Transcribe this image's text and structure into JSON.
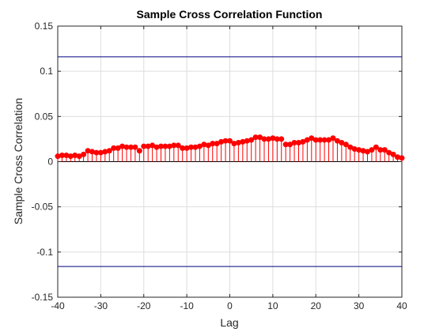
{
  "chart_data": {
    "type": "stem",
    "title": "Sample Cross Correlation Function",
    "xlabel": "Lag",
    "ylabel": "Sample Cross Correlation",
    "xlim": [
      -40,
      40
    ],
    "ylim": [
      -0.15,
      0.15
    ],
    "xticks": [
      "-40",
      "-30",
      "-20",
      "-10",
      "0",
      "10",
      "20",
      "30",
      "40"
    ],
    "yticks": [
      "0.15",
      "0.1",
      "0.05",
      "0",
      "-0.05",
      "-0.1",
      "-0.15"
    ],
    "grid": true,
    "confidence_bounds": [
      0.116,
      -0.116
    ],
    "lags": [
      -40,
      -39,
      -38,
      -37,
      -36,
      -35,
      -34,
      -33,
      -32,
      -31,
      -30,
      -29,
      -28,
      -27,
      -26,
      -25,
      -24,
      -23,
      -22,
      -21,
      -20,
      -19,
      -18,
      -17,
      -16,
      -15,
      -14,
      -13,
      -12,
      -11,
      -10,
      -9,
      -8,
      -7,
      -6,
      -5,
      -4,
      -3,
      -2,
      -1,
      0,
      1,
      2,
      3,
      4,
      5,
      6,
      7,
      8,
      9,
      10,
      11,
      12,
      13,
      14,
      15,
      16,
      17,
      18,
      19,
      20,
      21,
      22,
      23,
      24,
      25,
      26,
      27,
      28,
      29,
      30,
      31,
      32,
      33,
      34,
      35,
      36,
      37,
      38,
      39,
      40
    ],
    "values": [
      0.006,
      0.007,
      0.007,
      0.006,
      0.007,
      0.006,
      0.008,
      0.012,
      0.011,
      0.01,
      0.01,
      0.011,
      0.012,
      0.015,
      0.015,
      0.017,
      0.016,
      0.016,
      0.016,
      0.012,
      0.017,
      0.017,
      0.018,
      0.016,
      0.017,
      0.017,
      0.017,
      0.018,
      0.018,
      0.015,
      0.015,
      0.016,
      0.016,
      0.017,
      0.019,
      0.018,
      0.02,
      0.02,
      0.022,
      0.023,
      0.023,
      0.02,
      0.021,
      0.022,
      0.023,
      0.024,
      0.027,
      0.027,
      0.025,
      0.025,
      0.026,
      0.025,
      0.025,
      0.019,
      0.019,
      0.021,
      0.021,
      0.022,
      0.024,
      0.026,
      0.024,
      0.024,
      0.024,
      0.024,
      0.026,
      0.023,
      0.021,
      0.019,
      0.016,
      0.014,
      0.013,
      0.012,
      0.011,
      0.013,
      0.016,
      0.013,
      0.013,
      0.01,
      0.008,
      0.005,
      0.004
    ],
    "colors": {
      "stem": "#ff0000",
      "bounds": "#000080",
      "axes": "#262626",
      "grid": "#dedede"
    }
  }
}
